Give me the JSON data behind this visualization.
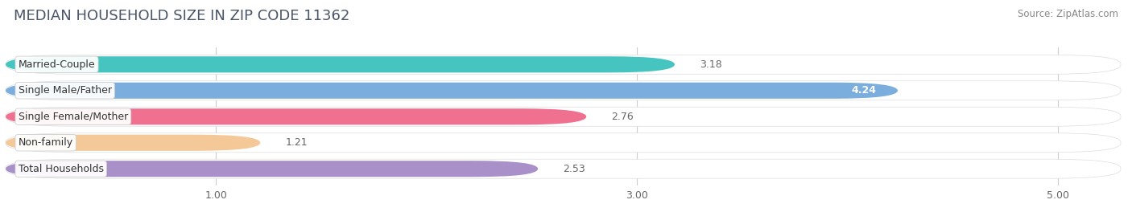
{
  "title": "MEDIAN HOUSEHOLD SIZE IN ZIP CODE 11362",
  "source": "Source: ZipAtlas.com",
  "categories": [
    "Married-Couple",
    "Single Male/Father",
    "Single Female/Mother",
    "Non-family",
    "Total Households"
  ],
  "values": [
    3.18,
    4.24,
    2.76,
    1.21,
    2.53
  ],
  "bar_colors": [
    "#45C4C0",
    "#7BAEDD",
    "#F07090",
    "#F5C898",
    "#A990C8"
  ],
  "value_inside": [
    false,
    true,
    false,
    false,
    false
  ],
  "bg_color": "#FFFFFF",
  "panel_bg": "#F0F0F5",
  "xlim_left": 0,
  "xlim_right": 5.3,
  "xticks": [
    1.0,
    3.0,
    5.0
  ],
  "title_fontsize": 13,
  "source_fontsize": 8.5,
  "label_fontsize": 9,
  "value_fontsize": 9,
  "bar_height": 0.62,
  "fig_width": 14.06,
  "fig_height": 2.69,
  "title_color": "#4A5568",
  "source_color": "#888888",
  "value_color_outside": "#666666",
  "value_color_inside": "#FFFFFF"
}
